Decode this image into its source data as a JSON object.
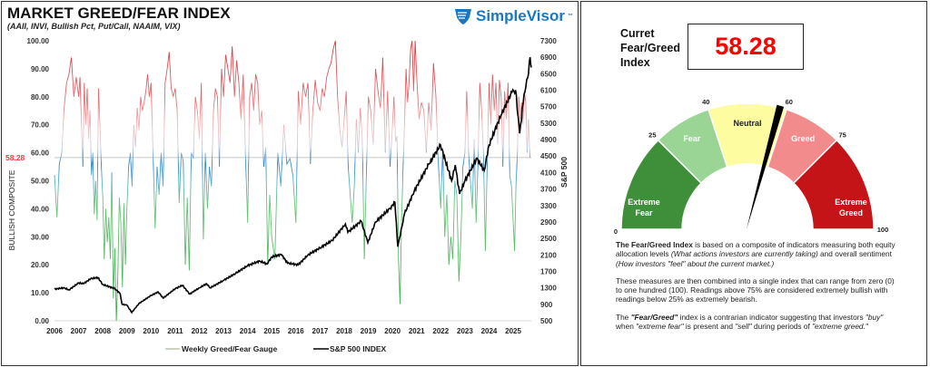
{
  "left": {
    "title": "MARKET GREED/FEAR INDEX",
    "subtitle": "(AAII, INVI, Bullish Pct, Put/Call, NAAIM, VIX)",
    "logo_text": "SimpleVisor",
    "logo_tm": "™"
  },
  "chart_data": {
    "type": "line",
    "left_axis": {
      "label": "BULLISH COMPOSITE",
      "range": [
        0,
        100
      ],
      "ticks": [
        "100.00",
        "90.00",
        "80.00",
        "70.00",
        "60.00",
        "50.00",
        "40.00",
        "30.00",
        "20.00",
        "10.00",
        "0.00"
      ]
    },
    "right_axis": {
      "label": "S&P 500",
      "range": [
        500,
        7300
      ],
      "ticks": [
        "7300",
        "6900",
        "6500",
        "6100",
        "5700",
        "5300",
        "4900",
        "4500",
        "4100",
        "3700",
        "3300",
        "2900",
        "2500",
        "2100",
        "1700",
        "1300",
        "900",
        "500"
      ]
    },
    "x_ticks": [
      "2006",
      "2007",
      "2008",
      "2009",
      "2010",
      "2011",
      "2012",
      "2013",
      "2014",
      "2015",
      "2016",
      "2017",
      "2018",
      "2019",
      "2020",
      "2021",
      "2022",
      "2023",
      "2024",
      "2025"
    ],
    "x_range": [
      2006,
      2025.75
    ],
    "current_value_label": "58.28",
    "current_value": 58.28,
    "legend_position": "bottom",
    "colors": {
      "greed_high": "#d9363e",
      "neutral": "#2e86c1",
      "fear_low": "#3cae4c",
      "sp500": "#000000"
    },
    "series": [
      {
        "name": "Weekly Greed/Fear Gauge",
        "axis": "left",
        "by_year": [
          {
            "year": 2006,
            "values": [
              52,
              37,
              56,
              60,
              76,
              85,
              88,
              94,
              80,
              87
            ]
          },
          {
            "year": 2007,
            "values": [
              80,
              87,
              70,
              55,
              85,
              70,
              83,
              65,
              75,
              52,
              60,
              38,
              50,
              36,
              83,
              70,
              55
            ]
          },
          {
            "year": 2008,
            "values": [
              44,
              22,
              40,
              28,
              37,
              22,
              53,
              8,
              26,
              0,
              17,
              44,
              35,
              12,
              42,
              20
            ]
          },
          {
            "year": 2009,
            "values": [
              40,
              55,
              60,
              48,
              70,
              62,
              76,
              68,
              80,
              75,
              78,
              82,
              88,
              80
            ]
          },
          {
            "year": 2010,
            "values": [
              85,
              60,
              33,
              55,
              45,
              60,
              48,
              85,
              90,
              96,
              83,
              80
            ]
          },
          {
            "year": 2011,
            "values": [
              83,
              75,
              42,
              60,
              57,
              20,
              44,
              18,
              60,
              58,
              80,
              75
            ]
          },
          {
            "year": 2012,
            "values": [
              65,
              85,
              29,
              60,
              40,
              55,
              48,
              75,
              83,
              80,
              55,
              90
            ]
          },
          {
            "year": 2013,
            "values": [
              80,
              95,
              90,
              85,
              98,
              80,
              93,
              85,
              72,
              88,
              60
            ]
          },
          {
            "year": 2014,
            "values": [
              35,
              80,
              85,
              75,
              88,
              85,
              70,
              75,
              55,
              62,
              20,
              45
            ]
          },
          {
            "year": 2015,
            "values": [
              30,
              22,
              60,
              48,
              70,
              56,
              58,
              52
            ]
          },
          {
            "year": 2016,
            "values": [
              35,
              82,
              70,
              85,
              80,
              85,
              56,
              75,
              86,
              78
            ]
          },
          {
            "year": 2017,
            "values": [
              75,
              83,
              80,
              87,
              90,
              92,
              97,
              100,
              80,
              68,
              62
            ]
          },
          {
            "year": 2018,
            "values": [
              72,
              82,
              55,
              45,
              35,
              48,
              72,
              60,
              76,
              65,
              22,
              52
            ]
          },
          {
            "year": 2019,
            "values": [
              80,
              75,
              63,
              90,
              82,
              76,
              94,
              60,
              82,
              55
            ]
          },
          {
            "year": 2020,
            "values": [
              70,
              80,
              64,
              66,
              22,
              6,
              35,
              55,
              70,
              90,
              78,
              85,
              97,
              100,
              82,
              100
            ]
          },
          {
            "year": 2021,
            "values": [
              88,
              72,
              78,
              75,
              60,
              78,
              68,
              92,
              80,
              56
            ]
          },
          {
            "year": 2022,
            "values": [
              40,
              62,
              30,
              45,
              20,
              30,
              22,
              50,
              45,
              14,
              30,
              55
            ]
          },
          {
            "year": 2023,
            "values": [
              60,
              82,
              60,
              50,
              40,
              65,
              35,
              55,
              85,
              75,
              60,
              25,
              55
            ]
          },
          {
            "year": 2024,
            "values": [
              85,
              70,
              88,
              75,
              85,
              63,
              86,
              80,
              55,
              82,
              72,
              85,
              52,
              48
            ]
          },
          {
            "year": 2025,
            "values": [
              35,
              25,
              48,
              60,
              80,
              72,
              78,
              70,
              82,
              78,
              60,
              72,
              58.28
            ]
          }
        ]
      },
      {
        "name": "S&P 500 INDEX",
        "axis": "right",
        "points": [
          [
            2006.0,
            1270
          ],
          [
            2006.4,
            1300
          ],
          [
            2006.6,
            1250
          ],
          [
            2007.0,
            1420
          ],
          [
            2007.2,
            1400
          ],
          [
            2007.5,
            1520
          ],
          [
            2007.8,
            1550
          ],
          [
            2008.0,
            1380
          ],
          [
            2008.5,
            1280
          ],
          [
            2008.72,
            1160
          ],
          [
            2008.8,
            900
          ],
          [
            2009.0,
            880
          ],
          [
            2009.2,
            700
          ],
          [
            2009.5,
            920
          ],
          [
            2010.0,
            1115
          ],
          [
            2010.3,
            1200
          ],
          [
            2010.5,
            1050
          ],
          [
            2011.0,
            1280
          ],
          [
            2011.3,
            1360
          ],
          [
            2011.6,
            1150
          ],
          [
            2012.0,
            1300
          ],
          [
            2012.3,
            1400
          ],
          [
            2012.45,
            1300
          ],
          [
            2013.0,
            1480
          ],
          [
            2013.5,
            1650
          ],
          [
            2014.0,
            1840
          ],
          [
            2014.5,
            1950
          ],
          [
            2014.8,
            1880
          ],
          [
            2015.0,
            2050
          ],
          [
            2015.4,
            2110
          ],
          [
            2015.65,
            1900
          ],
          [
            2016.1,
            1860
          ],
          [
            2016.5,
            2100
          ],
          [
            2017.0,
            2270
          ],
          [
            2017.5,
            2450
          ],
          [
            2018.05,
            2850
          ],
          [
            2018.15,
            2650
          ],
          [
            2018.7,
            2920
          ],
          [
            2018.98,
            2400
          ],
          [
            2019.3,
            2900
          ],
          [
            2019.9,
            3230
          ],
          [
            2020.1,
            3380
          ],
          [
            2020.22,
            2300
          ],
          [
            2020.5,
            3100
          ],
          [
            2020.9,
            3650
          ],
          [
            2021.5,
            4300
          ],
          [
            2021.99,
            4770
          ],
          [
            2022.45,
            3900
          ],
          [
            2022.6,
            4280
          ],
          [
            2022.78,
            3580
          ],
          [
            2023.0,
            3900
          ],
          [
            2023.5,
            4450
          ],
          [
            2023.8,
            4150
          ],
          [
            2024.0,
            4770
          ],
          [
            2024.5,
            5500
          ],
          [
            2024.95,
            6050
          ],
          [
            2025.1,
            6100
          ],
          [
            2025.27,
            5050
          ],
          [
            2025.45,
            6000
          ],
          [
            2025.6,
            6400
          ],
          [
            2025.7,
            6900
          ],
          [
            2025.75,
            6650
          ]
        ]
      }
    ]
  },
  "gauge": {
    "current_label": "Curret Fear/Greed Index",
    "current_label_lines": [
      "Curret",
      "Fear/Greed",
      "Index"
    ],
    "current_value": "58.28",
    "needle_value": 58.28,
    "segments": [
      {
        "label": "Extreme Fear",
        "lines": [
          "Extreme",
          "Fear"
        ],
        "from": 0,
        "to": 25,
        "color": "#3f8f3a"
      },
      {
        "label": "Fear",
        "lines": [
          "Fear"
        ],
        "from": 25,
        "to": 40,
        "color": "#9bd595"
      },
      {
        "label": "Neutral",
        "lines": [
          "Neutral"
        ],
        "from": 40,
        "to": 60,
        "color": "#fdfca0"
      },
      {
        "label": "Greed",
        "lines": [
          "Greed"
        ],
        "from": 60,
        "to": 75,
        "color": "#f28b8b"
      },
      {
        "label": "Extreme Greed",
        "lines": [
          "Extreme",
          "Greed"
        ],
        "from": 75,
        "to": 100,
        "color": "#c41418"
      }
    ],
    "ticks": [
      "0",
      "25",
      "40",
      "60",
      "75",
      "100"
    ]
  },
  "description": {
    "p1_bold": "The Fear/Greed Index",
    "p1_text": " is based on a composite of indicators measuring both equity allocation levels ",
    "p1_italic": "(What actions investors are currently taking)",
    "p1_text2": " and overall sentiment ",
    "p1_italic2": "(How investors \"feel\" about the current market.)",
    "p2": "These measures are then combined into a single index that can range from zero (0) to one hundred (100). Readings above 75% are considered extremely bullish with readings below 25% as extremely bearish.",
    "p3_a": "The ",
    "p3_bold": "\"Fear/Greed\"",
    "p3_b": " index is a contrarian indicator suggesting that investors ",
    "p3_buy": "\"buy\"",
    "p3_c": " when ",
    "p3_fear": "\"extreme fear\"",
    "p3_d": " is present and ",
    "p3_sell": "\"sell\"",
    "p3_e": " during periods of ",
    "p3_greed": "\"extreme greed.\""
  }
}
